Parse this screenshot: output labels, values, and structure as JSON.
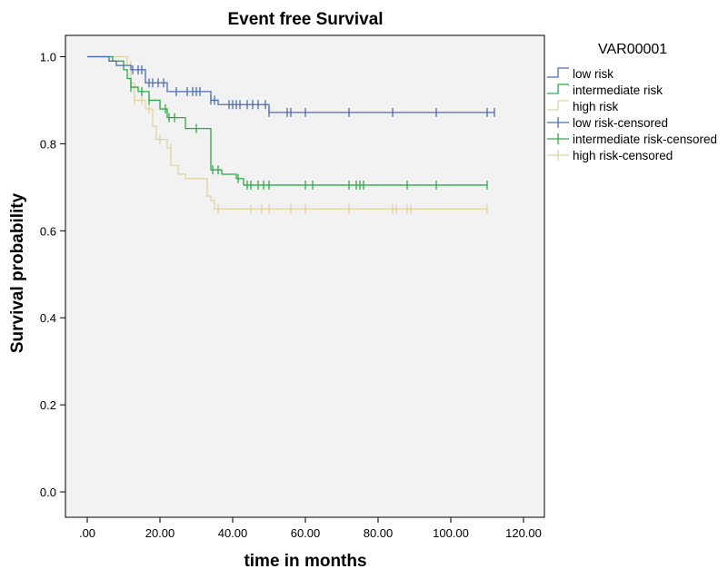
{
  "chart_data": {
    "type": "line",
    "title": "Event free Survival",
    "xlabel": "time in months",
    "ylabel": "Survival probability",
    "xlim": [
      0,
      120
    ],
    "ylim": [
      0,
      1.0
    ],
    "x_ticks": [
      0,
      20,
      40,
      60,
      80,
      100,
      120
    ],
    "x_tick_labels": [
      ".00",
      "20.00",
      "40.00",
      "60.00",
      "80.00",
      "100.00",
      "120.00"
    ],
    "y_ticks": [
      0,
      0.2,
      0.4,
      0.6,
      0.8,
      1.0
    ],
    "y_tick_labels": [
      "0.0",
      "0.2",
      "0.4",
      "0.6",
      "0.8",
      "1.0"
    ],
    "grid": false,
    "plot_background": "#f2f2f2",
    "legend": {
      "title": "VAR00001",
      "placement": "right",
      "entries": [
        {
          "label": "low  risk",
          "kind": "step",
          "group": 0
        },
        {
          "label": "intermediate risk",
          "kind": "step",
          "group": 1
        },
        {
          "label": "high risk",
          "kind": "step",
          "group": 2
        },
        {
          "label": "low  risk-censored",
          "kind": "censor",
          "group": 0
        },
        {
          "label": "intermediate risk-censored",
          "kind": "censor",
          "group": 1
        },
        {
          "label": "high risk-censored",
          "kind": "censor",
          "group": 2
        }
      ]
    },
    "series": [
      {
        "name": "low  risk",
        "color": "#4a6db3",
        "steps": [
          [
            0,
            1.0
          ],
          [
            6,
            0.99
          ],
          [
            8,
            0.98
          ],
          [
            12,
            0.97
          ],
          [
            16,
            0.94
          ],
          [
            22,
            0.92
          ],
          [
            34,
            0.9
          ],
          [
            36,
            0.89
          ],
          [
            50,
            0.872
          ]
        ],
        "end_x": 112,
        "censored": [
          [
            12.5,
            0.97
          ],
          [
            14,
            0.97
          ],
          [
            15,
            0.97
          ],
          [
            17,
            0.94
          ],
          [
            18,
            0.94
          ],
          [
            19.5,
            0.94
          ],
          [
            21,
            0.94
          ],
          [
            24.5,
            0.92
          ],
          [
            27.5,
            0.92
          ],
          [
            29,
            0.92
          ],
          [
            30,
            0.92
          ],
          [
            31,
            0.92
          ],
          [
            34,
            0.9
          ],
          [
            35,
            0.9
          ],
          [
            39,
            0.89
          ],
          [
            40,
            0.89
          ],
          [
            41,
            0.89
          ],
          [
            42,
            0.89
          ],
          [
            44,
            0.89
          ],
          [
            45.5,
            0.89
          ],
          [
            47,
            0.89
          ],
          [
            49,
            0.89
          ],
          [
            50,
            0.872
          ],
          [
            55,
            0.872
          ],
          [
            56,
            0.872
          ],
          [
            60,
            0.872
          ],
          [
            72,
            0.872
          ],
          [
            84,
            0.872
          ],
          [
            96,
            0.872
          ],
          [
            110,
            0.872
          ],
          [
            112,
            0.872
          ]
        ]
      },
      {
        "name": "intermediate risk",
        "color": "#2eaa4a",
        "steps": [
          [
            0,
            1.0
          ],
          [
            7,
            0.99
          ],
          [
            10,
            0.97
          ],
          [
            11,
            0.95
          ],
          [
            12,
            0.93
          ],
          [
            14,
            0.92
          ],
          [
            17,
            0.9
          ],
          [
            20,
            0.88
          ],
          [
            22,
            0.86
          ],
          [
            27,
            0.835
          ],
          [
            34,
            0.74
          ],
          [
            37,
            0.73
          ],
          [
            41,
            0.72
          ],
          [
            43,
            0.705
          ]
        ],
        "end_x": 110,
        "censored": [
          [
            12,
            0.93
          ],
          [
            15,
            0.92
          ],
          [
            17,
            0.9
          ],
          [
            21.5,
            0.88
          ],
          [
            22.5,
            0.86
          ],
          [
            24,
            0.86
          ],
          [
            30,
            0.835
          ],
          [
            34.5,
            0.74
          ],
          [
            36,
            0.74
          ],
          [
            41.5,
            0.72
          ],
          [
            44,
            0.705
          ],
          [
            45,
            0.705
          ],
          [
            47,
            0.705
          ],
          [
            48.5,
            0.705
          ],
          [
            50,
            0.705
          ],
          [
            60,
            0.705
          ],
          [
            62,
            0.705
          ],
          [
            72,
            0.705
          ],
          [
            74,
            0.705
          ],
          [
            75,
            0.705
          ],
          [
            76,
            0.705
          ],
          [
            88,
            0.705
          ],
          [
            96,
            0.705
          ],
          [
            110,
            0.705
          ]
        ]
      },
      {
        "name": "high risk",
        "color": "#dfd3a2",
        "steps": [
          [
            0,
            1.0
          ],
          [
            11,
            0.98
          ],
          [
            12,
            0.94
          ],
          [
            13,
            0.9
          ],
          [
            16,
            0.88
          ],
          [
            18,
            0.84
          ],
          [
            19,
            0.81
          ],
          [
            22,
            0.79
          ],
          [
            23,
            0.75
          ],
          [
            25,
            0.73
          ],
          [
            27,
            0.72
          ],
          [
            33,
            0.68
          ],
          [
            34,
            0.67
          ],
          [
            35,
            0.65
          ]
        ],
        "end_x": 110,
        "censored": [
          [
            12,
            0.98
          ],
          [
            13,
            0.9
          ],
          [
            15,
            0.9
          ],
          [
            17,
            0.88
          ],
          [
            20,
            0.81
          ],
          [
            23,
            0.79
          ],
          [
            36,
            0.65
          ],
          [
            45,
            0.65
          ],
          [
            48,
            0.65
          ],
          [
            50,
            0.65
          ],
          [
            56,
            0.65
          ],
          [
            60,
            0.65
          ],
          [
            72,
            0.65
          ],
          [
            84,
            0.65
          ],
          [
            85,
            0.65
          ],
          [
            88,
            0.65
          ],
          [
            89,
            0.65
          ],
          [
            110,
            0.65
          ]
        ]
      }
    ]
  }
}
